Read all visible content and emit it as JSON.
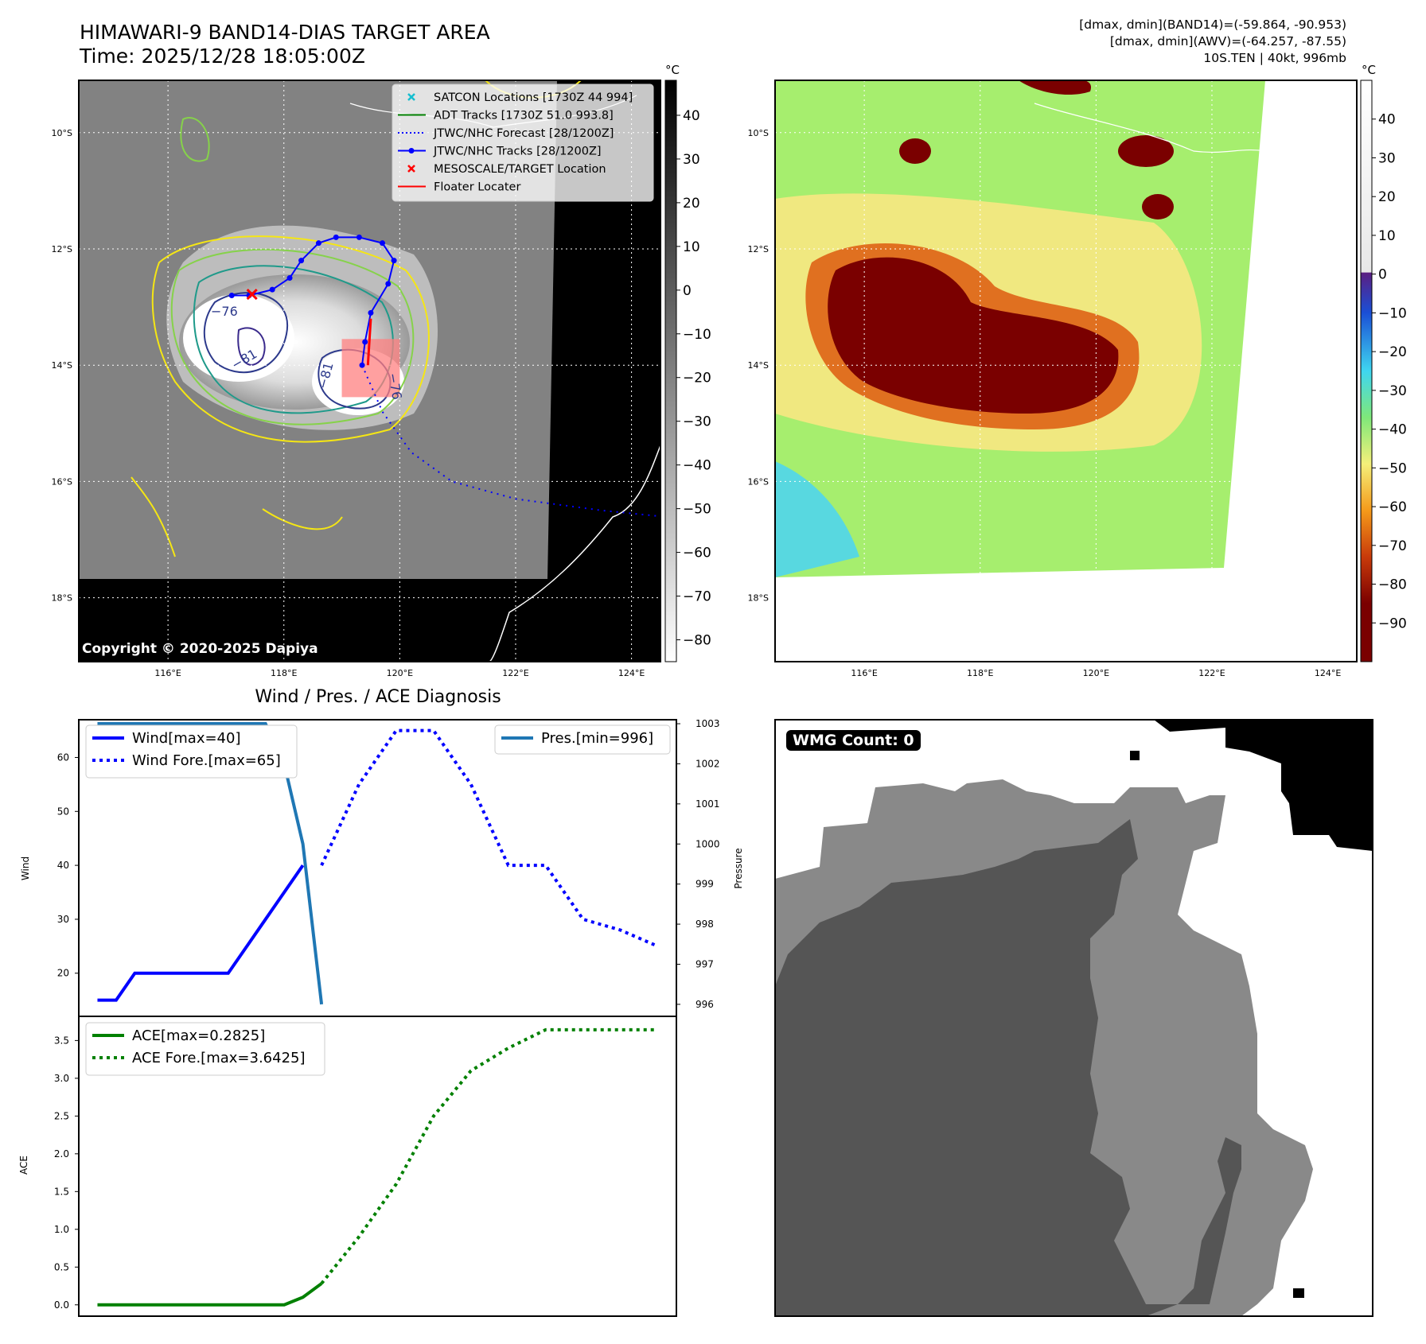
{
  "header": {
    "title": "HIMAWARI-9 BAND14-DIAS TARGET AREA",
    "time": "Time: 2025/12/28 18:05:00Z",
    "stats": [
      "[dmax, dmin](BAND14)=(-59.864, -90.953)",
      "[dmax, dmin](AWV)=(-64.257, -87.55)",
      "10S.TEN | 40kt, 996mb"
    ]
  },
  "copyright": "Copyright © 2020-2025 Dapiya",
  "maps": {
    "lat_labels": [
      "10°S",
      "12°S",
      "14°S",
      "16°S",
      "18°S"
    ],
    "lon_labels": [
      "116°E",
      "118°E",
      "120°E",
      "122°E",
      "124°E"
    ],
    "unit": "°C",
    "gray_colorbar_ticks": [
      "40",
      "30",
      "20",
      "10",
      "0",
      "−10",
      "−20",
      "−30",
      "−40",
      "−50",
      "−60",
      "−70",
      "−80"
    ],
    "color_colorbar_ticks": [
      "40",
      "30",
      "20",
      "10",
      "0",
      "−10",
      "−20",
      "−30",
      "−40",
      "−50",
      "−60",
      "−70",
      "−80",
      "−90"
    ],
    "contour_labels": [
      "−76",
      "−81",
      "−81",
      "−76"
    ],
    "legend": [
      {
        "label": "SATCON Locations [1730Z 44 994]",
        "color": "#17becf",
        "style": "x-marker"
      },
      {
        "label": "ADT Tracks [1730Z 51.0 993.8]",
        "color": "#007f00",
        "style": "solid"
      },
      {
        "label": "JTWC/NHC Forecast [28/1200Z]",
        "color": "#0000ff",
        "style": "dotted"
      },
      {
        "label": "JTWC/NHC Tracks [28/1200Z]",
        "color": "#0000ff",
        "style": "solid-dot"
      },
      {
        "label": "MESOSCALE/TARGET Location",
        "color": "#ff0000",
        "style": "x-marker"
      },
      {
        "label": "Floater Locater",
        "color": "#ff0000",
        "style": "solid"
      }
    ],
    "jtwc_track": [
      [
        117.1,
        -12.8
      ],
      [
        117.4,
        -12.8
      ],
      [
        117.8,
        -12.7
      ],
      [
        118.1,
        -12.5
      ],
      [
        118.3,
        -12.2
      ],
      [
        118.6,
        -11.9
      ],
      [
        118.9,
        -11.8
      ],
      [
        119.3,
        -11.8
      ],
      [
        119.7,
        -11.9
      ],
      [
        119.9,
        -12.2
      ],
      [
        119.8,
        -12.6
      ],
      [
        119.5,
        -13.1
      ],
      [
        119.4,
        -13.6
      ],
      [
        119.35,
        -14.0
      ]
    ],
    "jtwc_forecast": [
      [
        119.35,
        -14.0
      ],
      [
        119.7,
        -14.8
      ],
      [
        120.2,
        -15.5
      ],
      [
        120.9,
        -16.0
      ],
      [
        122.0,
        -16.3
      ],
      [
        123.5,
        -16.5
      ],
      [
        124.5,
        -16.6
      ]
    ],
    "mesoscale_target": [
      117.45,
      -12.78
    ],
    "floater_box": [
      [
        119.0,
        -13.55
      ],
      [
        120.0,
        -14.55
      ]
    ]
  },
  "chart_data": [
    {
      "type": "line",
      "title": "Wind / Pres. / ACE Diagnosis",
      "ylabel": "Wind",
      "y2label": "Pressure",
      "ylim": [
        12,
        67
      ],
      "y2lim": [
        995.7,
        1003.1
      ],
      "yticks": [
        20,
        30,
        40,
        50,
        60
      ],
      "y2ticks": [
        996,
        997,
        998,
        999,
        1000,
        1001,
        1002,
        1003
      ],
      "series": [
        {
          "name": "Wind[max=40]",
          "axis": "left",
          "style": "solid",
          "color": "#0000ff",
          "x": [
            0,
            1,
            2,
            3,
            4,
            5,
            6,
            7,
            8,
            9,
            10,
            11
          ],
          "y": [
            15,
            15,
            20,
            20,
            20,
            20,
            20,
            20,
            25,
            30,
            35,
            40
          ]
        },
        {
          "name": "Wind Fore.[max=65]",
          "axis": "left",
          "style": "dotted",
          "color": "#0000ff",
          "x": [
            12,
            14,
            16,
            18,
            20,
            22,
            24,
            26,
            28,
            30
          ],
          "y": [
            40,
            55,
            65,
            65,
            55,
            40,
            40,
            30,
            28,
            25
          ]
        },
        {
          "name": "Pres.[min=996]",
          "axis": "right",
          "style": "solid",
          "color": "#1f77b4",
          "x": [
            0,
            9,
            10,
            11,
            12
          ],
          "y": [
            1003,
            1003,
            1002,
            1000,
            996
          ]
        }
      ]
    },
    {
      "type": "line",
      "ylabel": "ACE",
      "ylim": [
        -0.15,
        3.82
      ],
      "yticks": [
        "0.0",
        "0.5",
        "1.0",
        "1.5",
        "2.0",
        "2.5",
        "3.0",
        "3.5"
      ],
      "series": [
        {
          "name": "ACE[max=0.2825]",
          "style": "solid",
          "color": "#008000",
          "x": [
            0,
            10,
            11,
            12
          ],
          "y": [
            0,
            0,
            0.1,
            0.2825
          ]
        },
        {
          "name": "ACE Fore.[max=3.6425]",
          "style": "dotted",
          "color": "#008000",
          "x": [
            12,
            14,
            16,
            18,
            20,
            22,
            24,
            26,
            28,
            30
          ],
          "y": [
            0.2825,
            0.9,
            1.6,
            2.5,
            3.1,
            3.4,
            3.6425,
            3.6425,
            3.6425,
            3.6425
          ]
        }
      ]
    }
  ],
  "wmg": {
    "label": "WMG Count: 0"
  }
}
